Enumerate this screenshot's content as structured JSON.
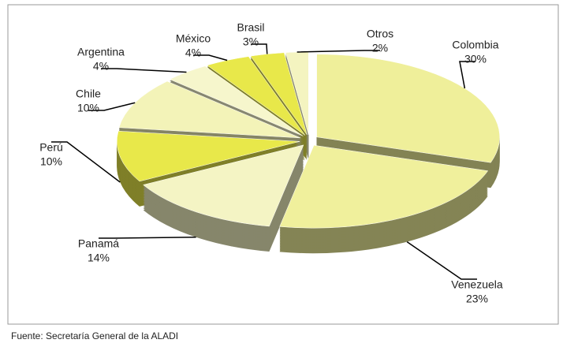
{
  "chart_data": {
    "type": "pie",
    "categories": [
      "Colombia",
      "Venezuela",
      "Panamá",
      "Perú",
      "Chile",
      "Argentina",
      "México",
      "Brasil",
      "Otros"
    ],
    "values": [
      30,
      23,
      14,
      10,
      10,
      4,
      4,
      3,
      2
    ],
    "value_labels": [
      "30%",
      "23%",
      "14%",
      "10%",
      "10%",
      "4%",
      "4%",
      "3%",
      "2%"
    ],
    "colors": [
      "#efef9a",
      "#f0f09c",
      "#f4f4c4",
      "#e8e84a",
      "#f3f3b8",
      "#f6f6cc",
      "#e8e84a",
      "#e8e84a",
      "#f4f4c0"
    ],
    "source": "Fuente: Secretaría General de la ALADI"
  }
}
